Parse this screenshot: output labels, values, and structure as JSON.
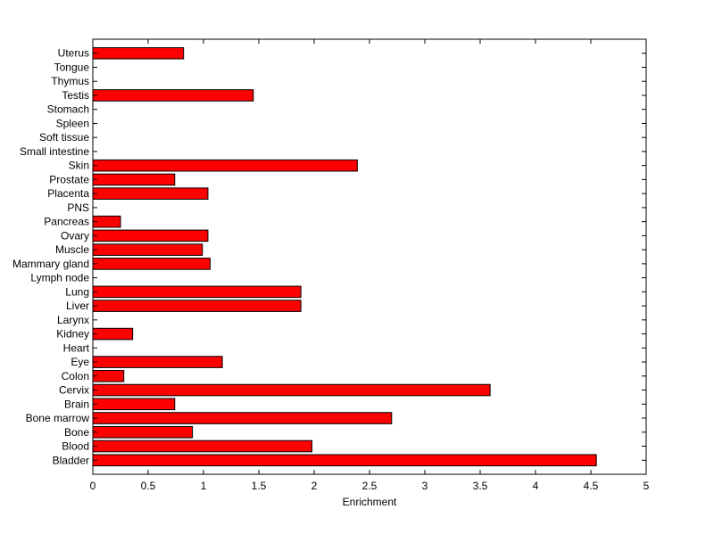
{
  "chart_data": {
    "type": "bar",
    "orientation": "horizontal",
    "title": "",
    "xlabel": "Enrichment",
    "ylabel": "",
    "xlim": [
      0,
      5
    ],
    "xticks": [
      "0",
      "0.5",
      "1",
      "1.5",
      "2",
      "2.5",
      "3",
      "3.5",
      "4",
      "4.5",
      "5"
    ],
    "grid": false,
    "bar_color": "#ff0000",
    "bar_edge_color": "#000000",
    "categories": [
      "Bladder",
      "Blood",
      "Bone",
      "Bone marrow",
      "Brain",
      "Cervix",
      "Colon",
      "Eye",
      "Heart",
      "Kidney",
      "Larynx",
      "Liver",
      "Lung",
      "Lymph node",
      "Mammary gland",
      "Muscle",
      "Ovary",
      "Pancreas",
      "PNS",
      "Placenta",
      "Prostate",
      "Skin",
      "Small intestine",
      "Soft tissue",
      "Spleen",
      "Stomach",
      "Testis",
      "Thymus",
      "Tongue",
      "Uterus"
    ],
    "values": [
      4.55,
      1.98,
      0.9,
      2.7,
      0.74,
      3.59,
      0.28,
      1.17,
      0,
      0.36,
      0,
      1.88,
      1.88,
      0,
      1.06,
      0.99,
      1.04,
      0.25,
      0,
      1.04,
      0.74,
      2.39,
      0,
      0,
      0,
      0,
      1.45,
      0,
      0,
      0.82
    ]
  }
}
